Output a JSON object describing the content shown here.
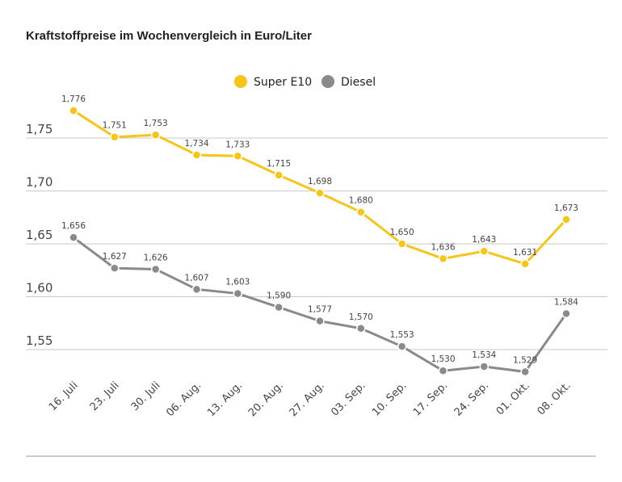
{
  "chart_data": {
    "type": "line",
    "title": "Kraftstoffpreise im Wochenvergleich in Euro/Liter",
    "xlabel": "",
    "ylabel": "",
    "categories": [
      "16. Juli",
      "23. Juli",
      "30. Juli",
      "06. Aug.",
      "13. Aug.",
      "20. Aug.",
      "27. Aug.",
      "03. Sep.",
      "10. Sep.",
      "17. Sep.",
      "24. Sep.",
      "01. Okt.",
      "08. Okt."
    ],
    "yticks": [
      "1,55",
      "1,60",
      "1,65",
      "1,70",
      "1,75"
    ],
    "ytick_values": [
      1.55,
      1.6,
      1.65,
      1.7,
      1.75
    ],
    "ylim": [
      1.51,
      1.8
    ],
    "grid": true,
    "legend_position": "top",
    "series": [
      {
        "name": "Super E10",
        "color": "#f5c518",
        "values": [
          1.776,
          1.751,
          1.753,
          1.734,
          1.733,
          1.715,
          1.698,
          1.68,
          1.65,
          1.636,
          1.643,
          1.631,
          1.673
        ],
        "labels": [
          "1,776",
          "1,751",
          "1,753",
          "1,734",
          "1,733",
          "1,715",
          "1,698",
          "1,680",
          "1,650",
          "1,636",
          "1,643",
          "1,631",
          "1,673"
        ]
      },
      {
        "name": "Diesel",
        "color": "#8a8a8a",
        "values": [
          1.656,
          1.627,
          1.626,
          1.607,
          1.603,
          1.59,
          1.577,
          1.57,
          1.553,
          1.53,
          1.534,
          1.529,
          1.584
        ],
        "labels": [
          "1,656",
          "1,627",
          "1,626",
          "1,607",
          "1,603",
          "1,590",
          "1,577",
          "1,570",
          "1,553",
          "1,530",
          "1,534",
          "1,529",
          "1,584"
        ]
      }
    ]
  }
}
